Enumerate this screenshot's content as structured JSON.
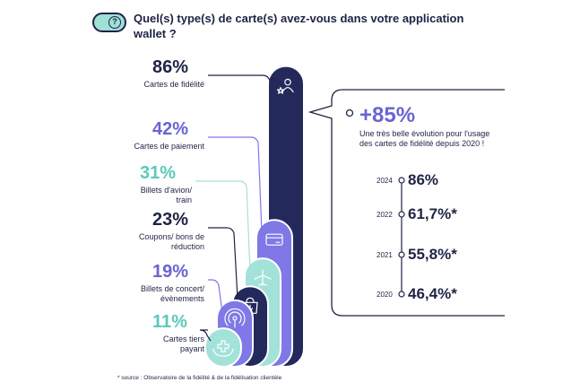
{
  "title": "Quel(s) type(s) de carte(s) avez-vous dans votre application wallet ?",
  "header_icon": "question-icon",
  "chart_data": [
    {
      "type": "bar",
      "categories": [
        "Cartes de fidélité",
        "Cartes de paiement",
        "Billets d'avion/ train",
        "Coupons/ bons de réduction",
        "Billets de concert/ évènements",
        "Cartes tiers payant"
      ],
      "values": [
        86,
        42,
        31,
        23,
        19,
        11
      ],
      "value_labels": [
        "86%",
        "42%",
        "31%",
        "23%",
        "19%",
        "11%"
      ],
      "colors": [
        "#24295c",
        "#7f78e6",
        "#a3e2d8",
        "#24295c",
        "#7f78e6",
        "#a3e2d8"
      ],
      "label_colors": [
        "#1f2345",
        "#6a64d2",
        "#5cc9bb",
        "#1f2345",
        "#6a64d2",
        "#5cc9bb"
      ],
      "icons": [
        "user-star-icon",
        "credit-card-icon",
        "airplane-icon",
        "coupon-bag-icon",
        "podcast-icon",
        "hand-cross-icon"
      ]
    },
    {
      "type": "line",
      "title": "+85%",
      "subtitle": "Une très belle évolution pour l'usage des cartes de fidélité depuis 2020 !",
      "x": [
        "2024",
        "2022",
        "2021",
        "2020"
      ],
      "values": [
        86,
        61.7,
        55.8,
        46.4
      ],
      "value_labels": [
        "86%",
        "61,7%*",
        "55,8%*",
        "46,4%*"
      ]
    }
  ],
  "source": "* source : Observatoire de la fidélité & de la fidélisation clientèle",
  "accent_colors": {
    "navy": "#24295c",
    "purple": "#7f78e6",
    "mint": "#a3e2d8"
  }
}
